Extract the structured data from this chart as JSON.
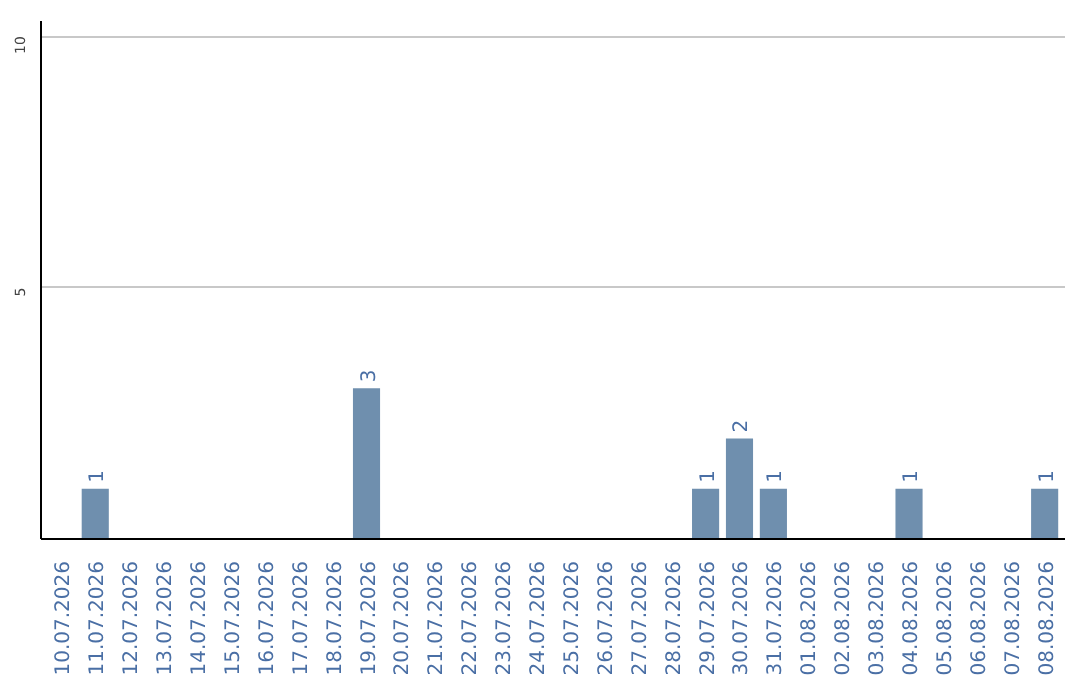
{
  "chart_data": {
    "type": "bar",
    "categories": [
      "10.07.2026",
      "11.07.2026",
      "12.07.2026",
      "13.07.2026",
      "14.07.2026",
      "15.07.2026",
      "16.07.2026",
      "17.07.2026",
      "18.07.2026",
      "19.07.2026",
      "20.07.2026",
      "21.07.2026",
      "22.07.2026",
      "23.07.2026",
      "24.07.2026",
      "25.07.2026",
      "26.07.2026",
      "27.07.2026",
      "28.07.2026",
      "29.07.2026",
      "30.07.2026",
      "31.07.2026",
      "01.08.2026",
      "02.08.2026",
      "03.08.2026",
      "04.08.2026",
      "05.08.2026",
      "06.08.2026",
      "07.08.2026",
      "08.08.2026"
    ],
    "values": [
      0,
      1,
      0,
      0,
      0,
      0,
      0,
      0,
      0,
      3,
      0,
      0,
      0,
      0,
      0,
      0,
      0,
      0,
      0,
      1,
      2,
      1,
      0,
      0,
      0,
      1,
      0,
      0,
      0,
      1
    ],
    "value_labels": [
      null,
      "1",
      null,
      null,
      null,
      null,
      null,
      null,
      null,
      "3",
      null,
      null,
      null,
      null,
      null,
      null,
      null,
      null,
      null,
      "1",
      "2",
      "1",
      null,
      null,
      null,
      "1",
      null,
      null,
      null,
      "1"
    ],
    "color": "#6f8fae",
    "ylim": [
      0,
      10.3
    ],
    "yticks": [
      5,
      10
    ],
    "grid": "y"
  }
}
